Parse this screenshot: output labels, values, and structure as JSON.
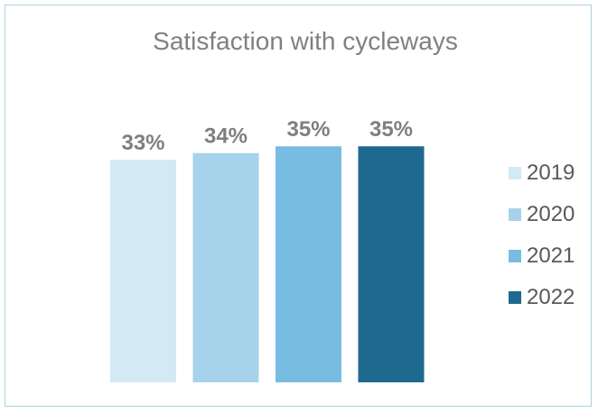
{
  "chart_data": {
    "type": "bar",
    "title": "Satisfaction with cycleways",
    "xlabel": "",
    "ylabel": "",
    "categories": [
      "2019",
      "2020",
      "2021",
      "2022"
    ],
    "values": [
      33,
      34,
      35,
      35
    ],
    "data_labels": [
      "33%",
      "34%",
      "35%",
      "35%"
    ],
    "colors": [
      "#d3e9f4",
      "#a7d2eb",
      "#79bce2",
      "#1e698f"
    ],
    "label_color": "#7f7f7f",
    "ylim": [
      0,
      35.3
    ],
    "grid": false,
    "legend": {
      "position": "right",
      "entries": [
        "2019",
        "2020",
        "2021",
        "2022"
      ]
    }
  }
}
